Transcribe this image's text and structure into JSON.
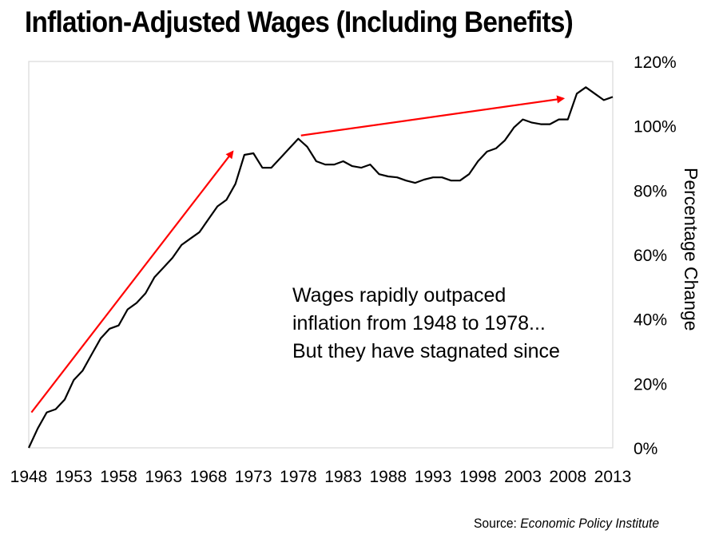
{
  "chart_data": {
    "type": "line",
    "title": "Inflation-Adjusted Wages (Including Benefits)",
    "xlabel": "",
    "ylabel": "Percentage Change",
    "y_axis_position": "right",
    "ylim": [
      0,
      120
    ],
    "xlim": [
      1948,
      2013
    ],
    "yticks": [
      0,
      20,
      40,
      60,
      80,
      100,
      120
    ],
    "ytick_labels": [
      "0%",
      "20%",
      "40%",
      "60%",
      "80%",
      "100%",
      "120%"
    ],
    "xticks": [
      1948,
      1953,
      1958,
      1963,
      1968,
      1973,
      1978,
      1983,
      1988,
      1993,
      1998,
      2003,
      2008,
      2013
    ],
    "xtick_labels": [
      "1948",
      "1953",
      "1958",
      "1963",
      "1968",
      "1973",
      "1978",
      "1983",
      "1988",
      "1993",
      "1998",
      "2003",
      "2008",
      "2013"
    ],
    "grid": false,
    "legend": "none",
    "series": [
      {
        "name": "Inflation-adjusted wages (including benefits)",
        "color": "#000000",
        "x": [
          1948,
          1949,
          1950,
          1951,
          1952,
          1953,
          1954,
          1955,
          1956,
          1957,
          1958,
          1959,
          1960,
          1961,
          1962,
          1963,
          1964,
          1965,
          1966,
          1967,
          1968,
          1969,
          1970,
          1971,
          1972,
          1973,
          1974,
          1975,
          1976,
          1977,
          1978,
          1979,
          1980,
          1981,
          1982,
          1983,
          1984,
          1985,
          1986,
          1987,
          1988,
          1989,
          1990,
          1991,
          1992,
          1993,
          1994,
          1995,
          1996,
          1997,
          1998,
          1999,
          2000,
          2001,
          2002,
          2003,
          2004,
          2005,
          2006,
          2007,
          2008,
          2009,
          2010,
          2011,
          2012,
          2013
        ],
        "values": [
          0,
          6,
          11,
          12,
          15,
          21,
          24,
          29,
          34,
          37,
          38,
          43,
          45,
          48,
          53,
          56,
          59,
          63,
          65,
          67,
          71,
          75,
          77,
          82,
          91,
          91.5,
          87,
          87,
          90,
          93,
          96,
          93.5,
          89,
          88,
          88,
          89,
          87.5,
          87,
          88,
          85,
          84.3,
          84,
          83,
          82.3,
          83.3,
          84,
          84,
          83,
          83,
          85,
          89,
          92,
          93,
          95.5,
          99.5,
          102,
          101,
          100.5,
          100.5,
          102,
          102,
          110,
          112,
          110,
          108,
          109
        ]
      }
    ],
    "arrows": [
      {
        "name": "growth-arrow",
        "color": "#ff0000",
        "from": {
          "x": 1948.3,
          "y": 11
        },
        "to": {
          "x": 1970.7,
          "y": 92
        }
      },
      {
        "name": "stagnation-arrow",
        "color": "#ff0000",
        "from": {
          "x": 1978.3,
          "y": 97
        },
        "to": {
          "x": 2007.5,
          "y": 108.5
        }
      }
    ],
    "annotations": [
      "Wages rapidly outpaced",
      "inflation from 1948 to 1978...",
      "But they have stagnated since"
    ]
  },
  "source": {
    "prefix": "Source: ",
    "name": "Economic Policy Institute"
  }
}
